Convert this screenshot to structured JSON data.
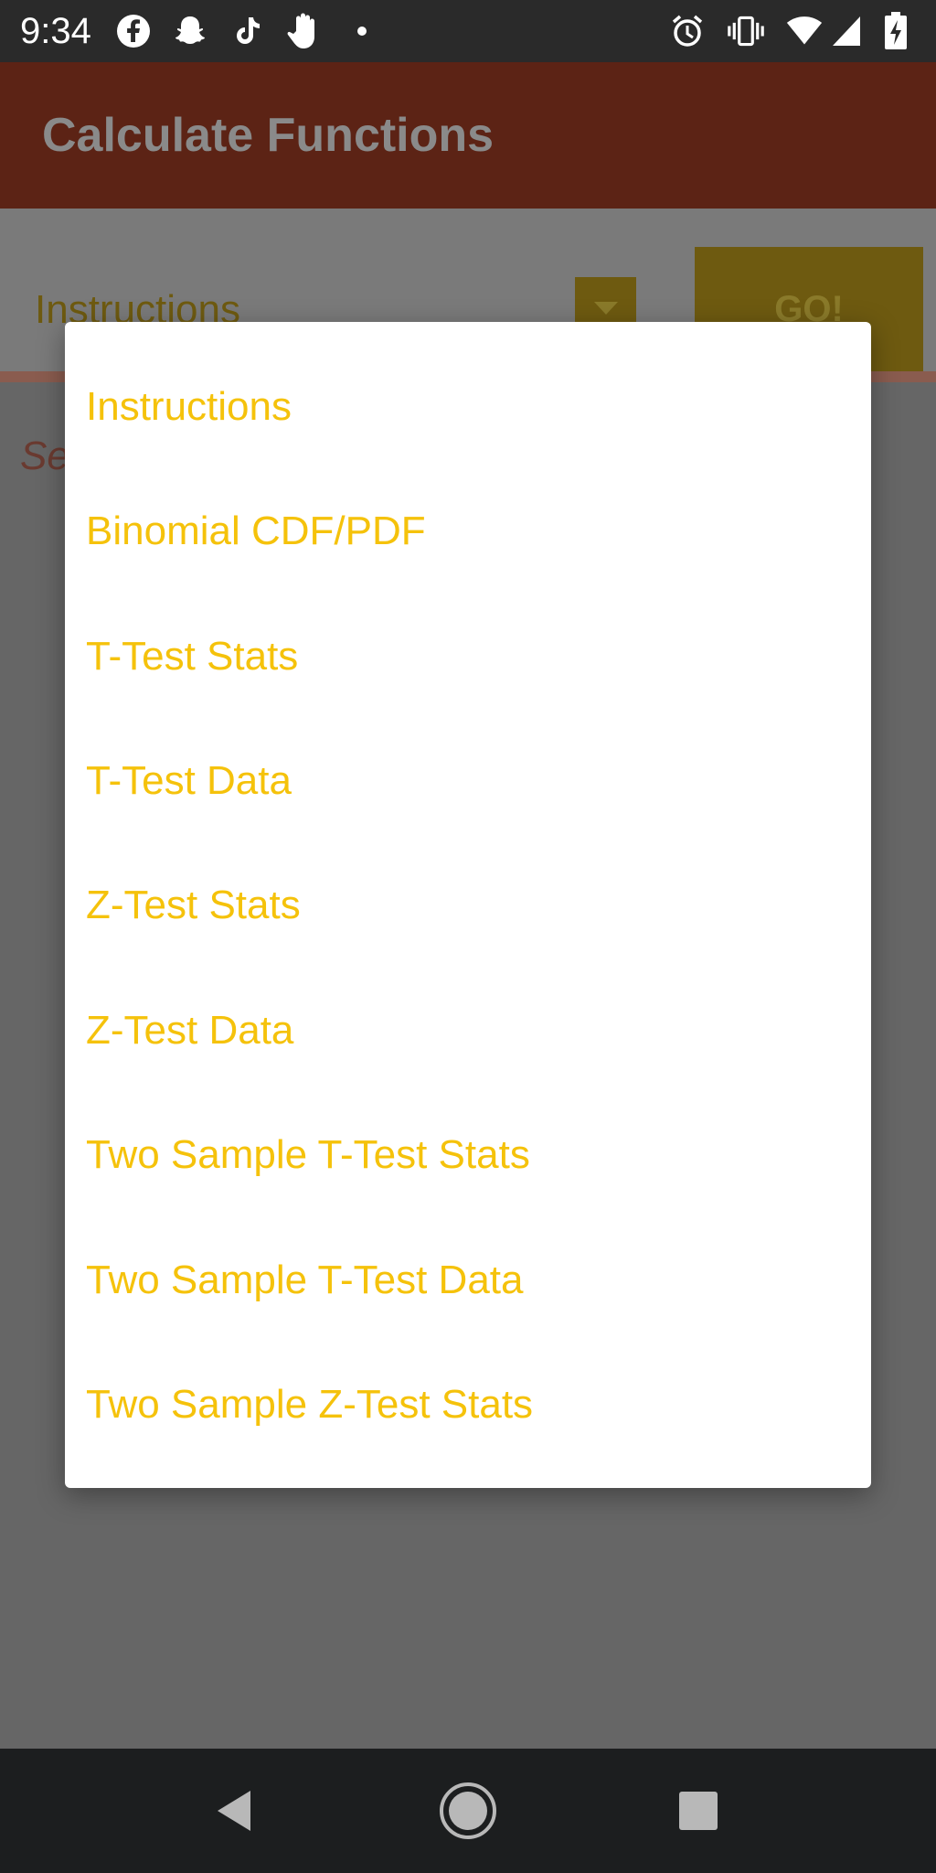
{
  "status_bar": {
    "time": "9:34",
    "left_icons": [
      "facebook-icon",
      "snapchat-icon",
      "tiktok-icon",
      "hand-icon",
      "dot-icon"
    ],
    "right_icons": [
      "alarm-icon",
      "vibrate-icon",
      "wifi-icon",
      "signal-icon",
      "battery-charging-icon"
    ]
  },
  "app_bar": {
    "title": "Calculate Functions",
    "color": "#5c2315"
  },
  "content": {
    "spinner_value": "Instructions",
    "go_label": "GO!",
    "hint_text": "Se"
  },
  "dialog": {
    "options": [
      {
        "label": "Instructions"
      },
      {
        "label": "Binomial CDF/PDF"
      },
      {
        "label": "T-Test Stats"
      },
      {
        "label": "T-Test Data"
      },
      {
        "label": "Z-Test Stats"
      },
      {
        "label": "Z-Test Data"
      },
      {
        "label": "Two Sample T-Test Stats"
      },
      {
        "label": "Two Sample T-Test Data"
      },
      {
        "label": "Two Sample Z-Test Stats"
      }
    ],
    "option_color": "#f5c20b"
  },
  "nav_bar": {
    "icons": [
      "back-icon",
      "home-icon",
      "recents-icon"
    ]
  }
}
